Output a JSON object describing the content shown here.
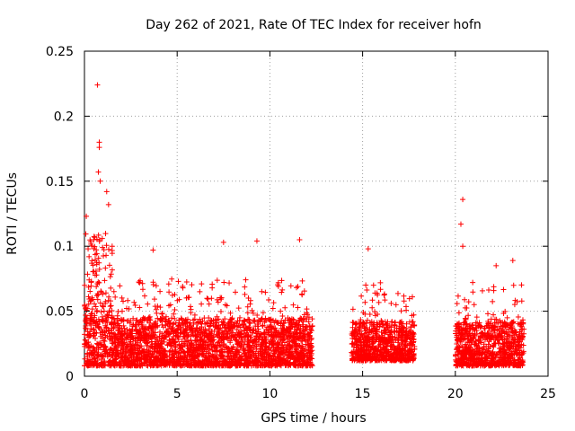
{
  "chart_data": {
    "type": "scatter",
    "title": "Day 262 of 2021, Rate Of TEC Index for receiver hofn",
    "xlabel": "GPS time / hours",
    "ylabel": "ROTI / TECUs",
    "xlim": [
      0,
      25
    ],
    "ylim": [
      0,
      0.25
    ],
    "x_ticks": [
      "0",
      "5",
      "10",
      "15",
      "20",
      "25"
    ],
    "y_ticks": [
      "0",
      "0.05",
      "0.1",
      "0.15",
      "0.2",
      "0.25"
    ],
    "grid": true,
    "marker": "plus",
    "color": "#ff0000",
    "segments": [
      {
        "x_start": 0.0,
        "x_end": 12.3,
        "y_min": 0.008,
        "y_typical": 0.03
      },
      {
        "x_start": 14.4,
        "x_end": 17.8,
        "y_min": 0.012,
        "y_typical": 0.028
      },
      {
        "x_start": 20.0,
        "x_end": 23.7,
        "y_min": 0.008,
        "y_typical": 0.028
      }
    ],
    "notable_points": [
      {
        "x": 0.7,
        "y": 0.224
      },
      {
        "x": 0.8,
        "y": 0.18
      },
      {
        "x": 0.8,
        "y": 0.176
      },
      {
        "x": 0.75,
        "y": 0.157
      },
      {
        "x": 0.85,
        "y": 0.15
      },
      {
        "x": 1.2,
        "y": 0.142
      },
      {
        "x": 1.3,
        "y": 0.132
      },
      {
        "x": 0.1,
        "y": 0.123
      },
      {
        "x": 0.5,
        "y": 0.105
      },
      {
        "x": 3.7,
        "y": 0.097
      },
      {
        "x": 7.5,
        "y": 0.103
      },
      {
        "x": 9.3,
        "y": 0.104
      },
      {
        "x": 11.6,
        "y": 0.105
      },
      {
        "x": 15.3,
        "y": 0.098
      },
      {
        "x": 20.4,
        "y": 0.136
      },
      {
        "x": 20.3,
        "y": 0.117
      },
      {
        "x": 20.4,
        "y": 0.1
      },
      {
        "x": 22.2,
        "y": 0.085
      },
      {
        "x": 23.1,
        "y": 0.089
      }
    ]
  }
}
